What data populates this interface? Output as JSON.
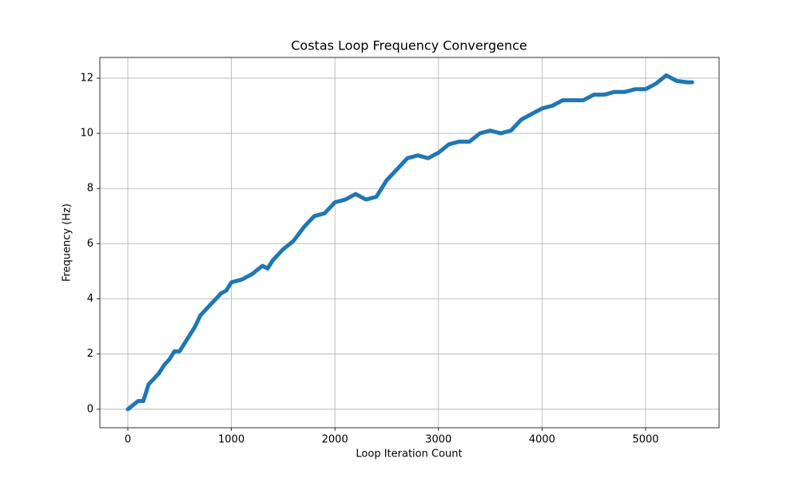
{
  "chart_data": {
    "type": "line",
    "title": "Costas Loop Frequency Convergence",
    "x_label": "Loop Iteration Count",
    "y_label": "Frequency (Hz)",
    "x": [
      0,
      100,
      150,
      200,
      250,
      300,
      350,
      400,
      450,
      500,
      550,
      600,
      650,
      700,
      750,
      800,
      850,
      900,
      950,
      1000,
      1100,
      1200,
      1300,
      1350,
      1400,
      1500,
      1600,
      1700,
      1800,
      1900,
      2000,
      2100,
      2200,
      2300,
      2400,
      2500,
      2600,
      2700,
      2800,
      2900,
      3000,
      3100,
      3200,
      3300,
      3400,
      3500,
      3600,
      3700,
      3800,
      3900,
      4000,
      4100,
      4200,
      4300,
      4400,
      4500,
      4600,
      4700,
      4800,
      4900,
      5000,
      5100,
      5200,
      5300,
      5400,
      5450
    ],
    "values": [
      0,
      0.3,
      0.3,
      0.9,
      1.1,
      1.3,
      1.6,
      1.8,
      2.1,
      2.1,
      2.4,
      2.7,
      3.0,
      3.4,
      3.6,
      3.8,
      4.0,
      4.2,
      4.3,
      4.6,
      4.7,
      4.9,
      5.2,
      5.1,
      5.4,
      5.8,
      6.1,
      6.6,
      7.0,
      7.1,
      7.5,
      7.6,
      7.8,
      7.6,
      7.7,
      8.3,
      8.7,
      9.1,
      9.2,
      9.1,
      9.3,
      9.6,
      9.7,
      9.7,
      10.0,
      10.1,
      10.0,
      10.1,
      10.5,
      10.7,
      10.9,
      11.0,
      11.2,
      11.2,
      11.2,
      11.4,
      11.4,
      11.5,
      11.5,
      11.6,
      11.6,
      11.8,
      12.1,
      11.9,
      11.85,
      11.85
    ],
    "color": "#1f77b4",
    "xlim": [
      -270,
      5710
    ],
    "xticks": [
      0,
      1000,
      2000,
      3000,
      4000,
      5000
    ],
    "ylim": [
      -0.67,
      12.75
    ],
    "yticks": [
      0,
      2,
      4,
      6,
      8,
      10,
      12
    ],
    "grid": true
  }
}
